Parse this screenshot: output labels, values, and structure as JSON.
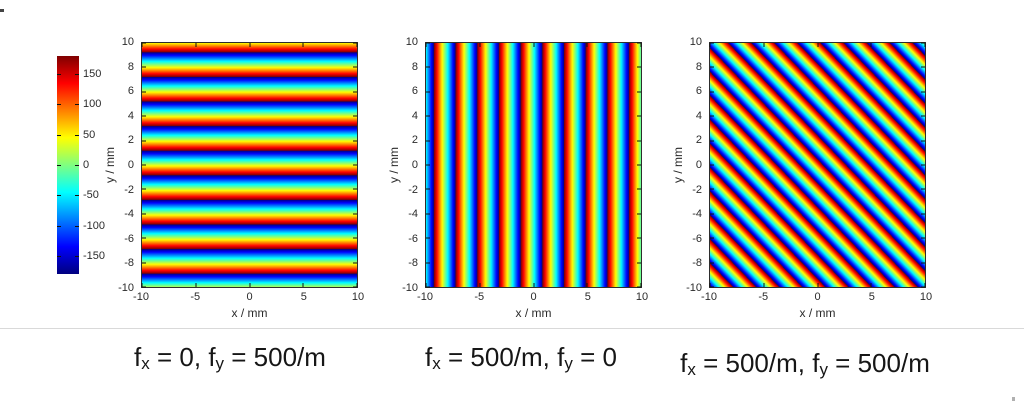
{
  "figure": {
    "background": "#ffffff",
    "separator_color": "#d9d9d9"
  },
  "colorbar": {
    "orientation": "vertical",
    "colormap": "jet",
    "value_max": 180,
    "value_min": -180,
    "tick_labels": [
      "150",
      "100",
      "50",
      "0",
      "-50",
      "-100",
      "-150"
    ],
    "tick_values": [
      150,
      100,
      50,
      0,
      -50,
      -100,
      -150
    ],
    "color_stops_top_to_bottom": [
      "#7f0000",
      "#ff0000",
      "#ffff00",
      "#00ffff",
      "#0000ff",
      "#00007f"
    ]
  },
  "axes": {
    "x_label": "x / mm",
    "y_label": "y / mm",
    "x_tick_labels": [
      "-10",
      "-5",
      "0",
      "5",
      "10"
    ],
    "x_tick_values": [
      -10,
      -5,
      0,
      5,
      10
    ],
    "y_tick_labels": [
      "10",
      "8",
      "6",
      "4",
      "2",
      "0",
      "-2",
      "-4",
      "-6",
      "-8",
      "-10"
    ],
    "y_tick_values": [
      10,
      8,
      6,
      4,
      2,
      0,
      -2,
      -4,
      -6,
      -8,
      -10
    ],
    "x_range": [
      -10,
      10
    ],
    "y_range": [
      -10,
      10
    ]
  },
  "plots": [
    {
      "id": "fy-only",
      "fx": "0",
      "fy": "500/m",
      "stripe_orientation": "horizontal"
    },
    {
      "id": "fx-only",
      "fx": "500/m",
      "fy": "0",
      "stripe_orientation": "vertical"
    },
    {
      "id": "fx-and-fy",
      "fx": "500/m",
      "fy": "500/m",
      "stripe_orientation": "diagonal"
    }
  ],
  "captions": [
    {
      "segments": [
        {
          "text": "f"
        },
        {
          "sub": "x"
        },
        {
          "text": " = 0, f"
        },
        {
          "sub": "y"
        },
        {
          "text": " = 500/m"
        }
      ]
    },
    {
      "segments": [
        {
          "text": "f"
        },
        {
          "sub": "x"
        },
        {
          "text": " = 500/m, f"
        },
        {
          "sub": "y"
        },
        {
          "text": " = 0"
        }
      ]
    },
    {
      "segments": [
        {
          "text": "f"
        },
        {
          "sub": "x"
        },
        {
          "text": " = 500/m, f"
        },
        {
          "sub": "y"
        },
        {
          "text": " = 500/m"
        }
      ]
    }
  ],
  "chart_data": [
    {
      "type": "heatmap",
      "title": "",
      "xlabel": "x / mm",
      "ylabel": "y / mm",
      "xlim": [
        -10,
        10
      ],
      "ylim": [
        -10,
        10
      ],
      "colormap": "jet",
      "value_range": [
        -180,
        180
      ],
      "colorbar_ticks": [
        150,
        100,
        50,
        0,
        -50,
        -100,
        -150
      ],
      "description": "wrapped phase of plane wave, phase cycles every 2 mm along y",
      "fx_per_m": 0,
      "fy_per_m": 500,
      "stripe_orientation": "horizontal",
      "period_mm": 2,
      "num_periods_visible": 10
    },
    {
      "type": "heatmap",
      "title": "",
      "xlabel": "x / mm",
      "ylabel": "y / mm",
      "xlim": [
        -10,
        10
      ],
      "ylim": [
        -10,
        10
      ],
      "colormap": "jet",
      "value_range": [
        -180,
        180
      ],
      "colorbar_ticks": [
        150,
        100,
        50,
        0,
        -50,
        -100,
        -150
      ],
      "description": "wrapped phase of plane wave, phase cycles every 2 mm along x",
      "fx_per_m": 500,
      "fy_per_m": 0,
      "stripe_orientation": "vertical",
      "period_mm": 2,
      "num_periods_visible": 10
    },
    {
      "type": "heatmap",
      "title": "",
      "xlabel": "x / mm",
      "ylabel": "y / mm",
      "xlim": [
        -10,
        10
      ],
      "ylim": [
        -10,
        10
      ],
      "colormap": "jet",
      "value_range": [
        -180,
        180
      ],
      "colorbar_ticks": [
        150,
        100,
        50,
        0,
        -50,
        -100,
        -150
      ],
      "description": "wrapped phase of plane wave, diagonal fringes (top-left to bottom-right), period 2 mm along each axis",
      "fx_per_m": 500,
      "fy_per_m": 500,
      "stripe_orientation": "diagonal",
      "period_along_normal_mm": 1.414,
      "num_periods_visible": 10
    }
  ]
}
